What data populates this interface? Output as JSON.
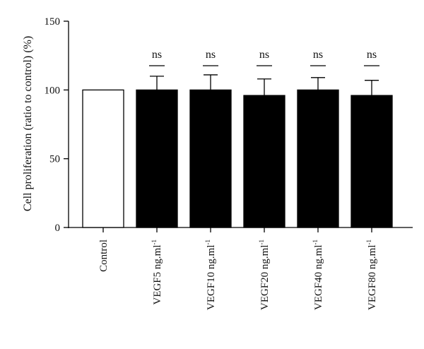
{
  "chart_data": {
    "type": "bar",
    "title": "",
    "xlabel": "",
    "ylabel": "Cell proliferation (ratio to control) (%)",
    "ylim": [
      0,
      150
    ],
    "yticks": [
      0,
      50,
      100,
      150
    ],
    "categories": [
      {
        "label": "Control",
        "sup": ""
      },
      {
        "label": "VEGF5 ng.ml",
        "sup": "-1"
      },
      {
        "label": "VEGF10 ng.ml",
        "sup": "-1"
      },
      {
        "label": "VEGF20 ng.ml",
        "sup": "-1"
      },
      {
        "label": "VEGF40 ng.ml",
        "sup": "-1"
      },
      {
        "label": "VEGF80 ng.ml",
        "sup": "-1"
      }
    ],
    "values": [
      100,
      100,
      100,
      96,
      100,
      96
    ],
    "error_upper": [
      null,
      110,
      111,
      108,
      109,
      107
    ],
    "annotations": [
      "",
      "ns",
      "ns",
      "ns",
      "ns",
      "ns"
    ],
    "bar_fills": [
      "#ffffff",
      "#000000",
      "#000000",
      "#000000",
      "#000000",
      "#000000"
    ],
    "grid": false,
    "legend": "none"
  }
}
